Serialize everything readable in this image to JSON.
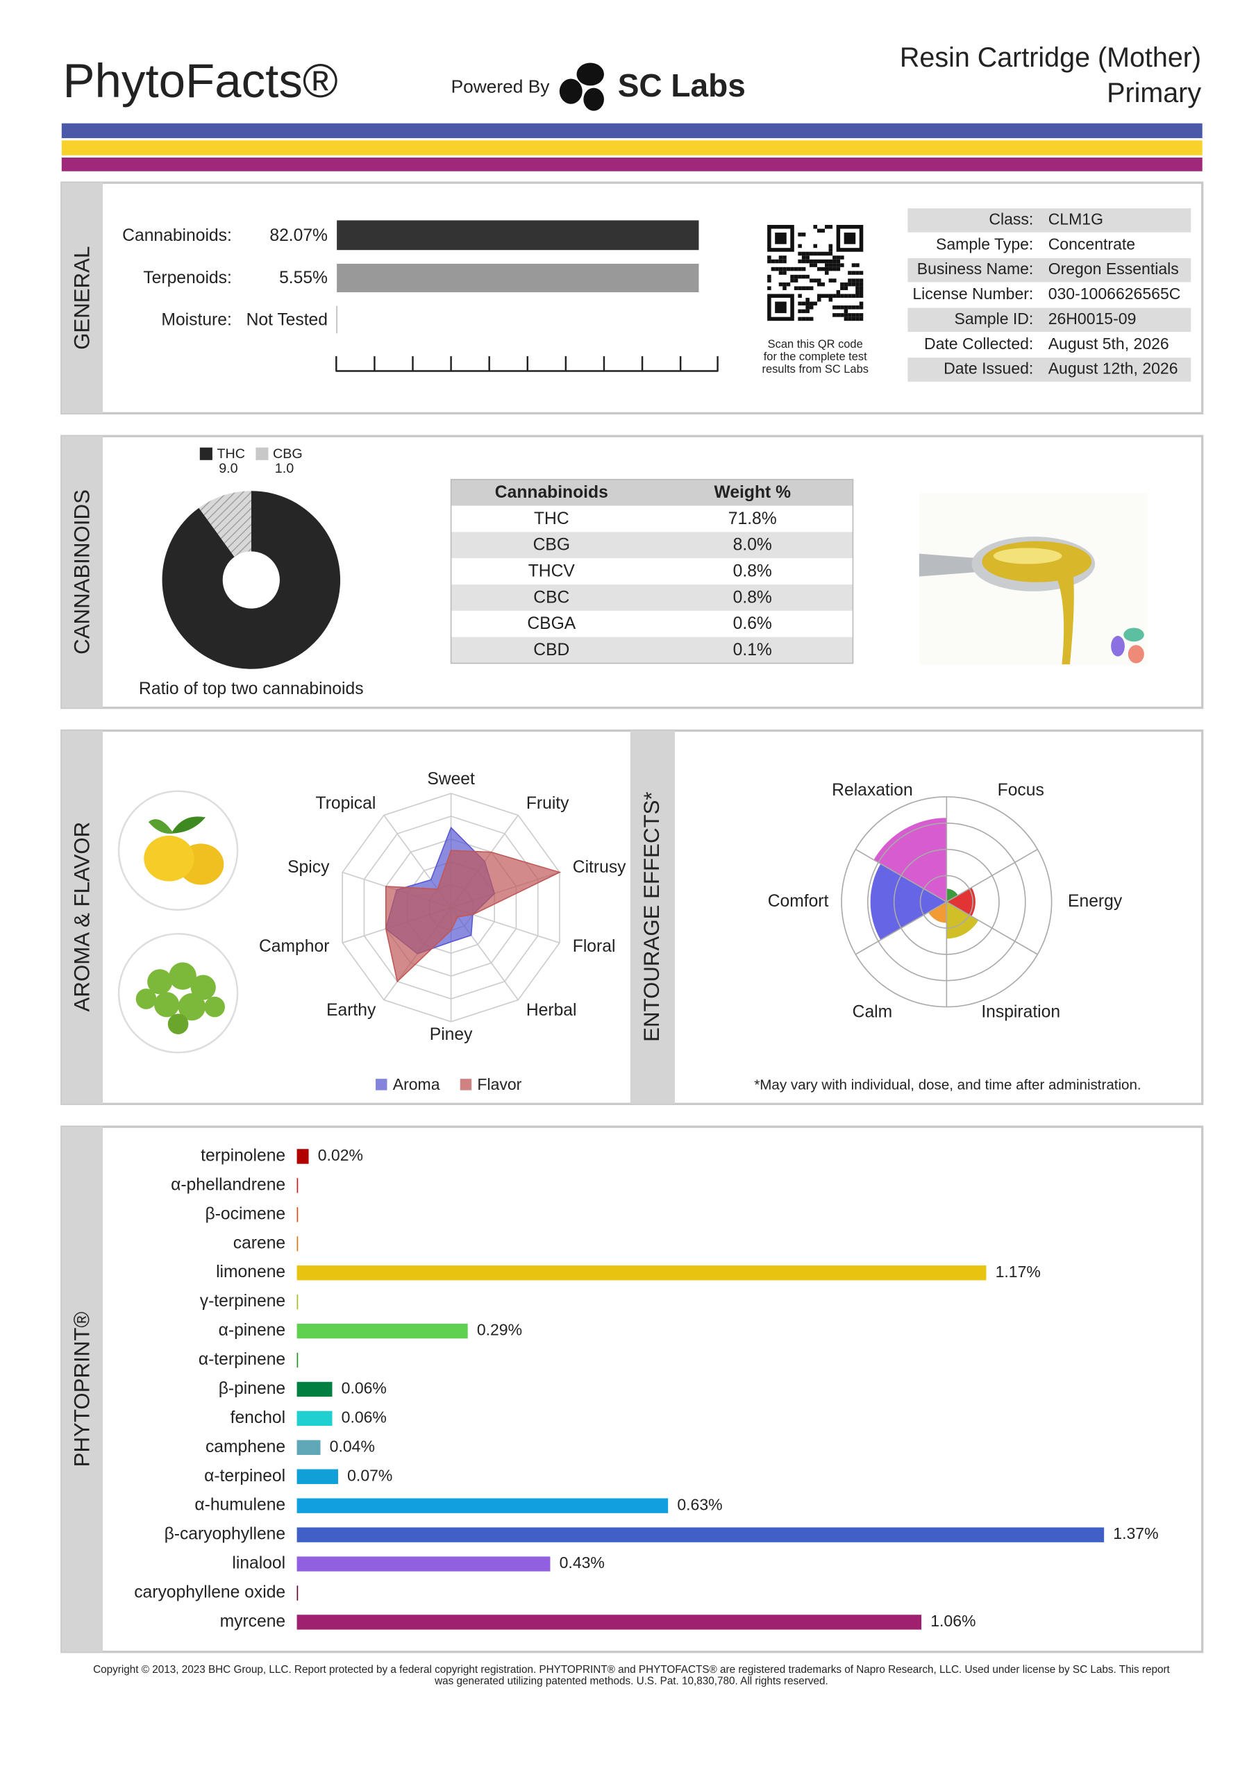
{
  "header": {
    "brand": "PhytoFacts®",
    "powered_by": "Powered By",
    "lab": "SC Labs",
    "product": "Resin Cartridge (Mother)",
    "sample_kind": "Primary"
  },
  "general": {
    "title": "GENERAL",
    "rows": [
      {
        "label": "Cannabinoids:",
        "value": "82.07%"
      },
      {
        "label": "Terpenoids:",
        "value": "5.55%"
      },
      {
        "label": "Moisture:",
        "value": "Not Tested"
      }
    ],
    "qr_caption": [
      "Scan this QR code",
      "for the complete test",
      "results from SC Labs"
    ],
    "details": [
      {
        "label": "Class:",
        "value": "CLM1G"
      },
      {
        "label": "Sample Type:",
        "value": "Concentrate"
      },
      {
        "label": "Business Name:",
        "value": "Oregon Essentials"
      },
      {
        "label": "License Number:",
        "value": "030-1006626565C"
      },
      {
        "label": "Sample ID:",
        "value": "26H0015-09"
      },
      {
        "label": "Date Collected:",
        "value": "August 5th, 2026"
      },
      {
        "label": "Date Issued:",
        "value": "August 12th, 2026"
      }
    ]
  },
  "cannabinoids": {
    "title": "CANNABINOIDS",
    "ratio_chart": {
      "type": "pie",
      "caption": "Ratio of top two cannabinoids",
      "series": [
        {
          "name": "THC",
          "value": 9.0,
          "value_label": "9.0",
          "color": "#262626"
        },
        {
          "name": "CBG",
          "value": 1.0,
          "value_label": "1.0",
          "color": "#c8c8c8"
        }
      ]
    },
    "table": {
      "columns": [
        "Cannabinoids",
        "Weight %"
      ],
      "rows": [
        [
          "THC",
          "71.8%"
        ],
        [
          "CBG",
          "8.0%"
        ],
        [
          "THCV",
          "0.8%"
        ],
        [
          "CBC",
          "0.8%"
        ],
        [
          "CBGA",
          "0.6%"
        ],
        [
          "CBD",
          "0.1%"
        ]
      ]
    }
  },
  "aroma_flavor": {
    "title": "AROMA & FLAVOR",
    "type": "radar",
    "categories": [
      "Sweet",
      "Fruity",
      "Citrusy",
      "Floral",
      "Herbal",
      "Piney",
      "Earthy",
      "Camphor",
      "Spicy",
      "Tropical"
    ],
    "series": [
      {
        "name": "Aroma",
        "color": "#5a5ad2",
        "values": [
          3.5,
          2.5,
          2.0,
          1.0,
          1.5,
          1.5,
          2.5,
          3.0,
          2.5,
          1.5
        ]
      },
      {
        "name": "Flavor",
        "color": "#c05858",
        "values": [
          2.5,
          3.0,
          5.0,
          1.0,
          0.5,
          1.0,
          4.0,
          3.0,
          3.0,
          1.0
        ]
      }
    ],
    "rlim": [
      0,
      5
    ],
    "rticks": [
      1,
      2,
      3,
      4,
      5
    ]
  },
  "entourage_effects": {
    "title": "ENTOURAGE EFFECTS*",
    "type": "polar_area",
    "categories": [
      "Focus",
      "Energy",
      "Inspiration",
      "Calm",
      "Comfort",
      "Relaxation"
    ],
    "values": [
      0.5,
      1.1,
      1.4,
      0.8,
      2.9,
      3.2
    ],
    "colors": [
      "#1a8a1a",
      "#dd1010",
      "#c8b400",
      "#f08a10",
      "#4a4ae0",
      "#d040c8"
    ],
    "rlim": [
      0,
      4
    ],
    "rticks": [
      1,
      2,
      3,
      4
    ],
    "footnote": "*May vary with individual, dose, and time after administration."
  },
  "phytoprint": {
    "title": "PHYTOPRINT®",
    "type": "bar",
    "categories": [
      "terpinolene",
      "α-phellandrene",
      "β-ocimene",
      "carene",
      "limonene",
      "γ-terpinene",
      "α-pinene",
      "α-terpinene",
      "β-pinene",
      "fenchol",
      "camphene",
      "α-terpineol",
      "α-humulene",
      "β-caryophyllene",
      "linalool",
      "caryophyllene oxide",
      "myrcene"
    ],
    "values": [
      0.02,
      0,
      0,
      0,
      1.17,
      0,
      0.29,
      0,
      0.06,
      0.06,
      0.04,
      0.07,
      0.63,
      1.37,
      0.43,
      0,
      1.06
    ],
    "value_labels": [
      "0.02%",
      null,
      null,
      null,
      "1.17%",
      null,
      "0.29%",
      null,
      "0.06%",
      "0.06%",
      "0.04%",
      "0.07%",
      "0.63%",
      "1.37%",
      "0.43%",
      null,
      "1.06%"
    ],
    "colors": [
      "#b00000",
      "#d01818",
      "#d84a10",
      "#d07a10",
      "#e8c410",
      "#a8b820",
      "#60d050",
      "#209020",
      "#008040",
      "#20d0d0",
      "#60a8b8",
      "#10a0d8",
      "#10a0e0",
      "#4060c8",
      "#9060e0",
      "#600030",
      "#a02070"
    ],
    "xlim": [
      0,
      1.5
    ]
  },
  "footer": {
    "copyright": [
      "Copyright © 2013, 2023 BHC Group, LLC. Report protected by a federal copyright registration. PHYTOPRINT® and PHYTOFACTS® are registered trademarks of Napro Research, LLC. Used under license by SC Labs. This report",
      "was generated utilizing patented methods. U.S. Pat. 10,830,780. All rights reserved."
    ]
  }
}
